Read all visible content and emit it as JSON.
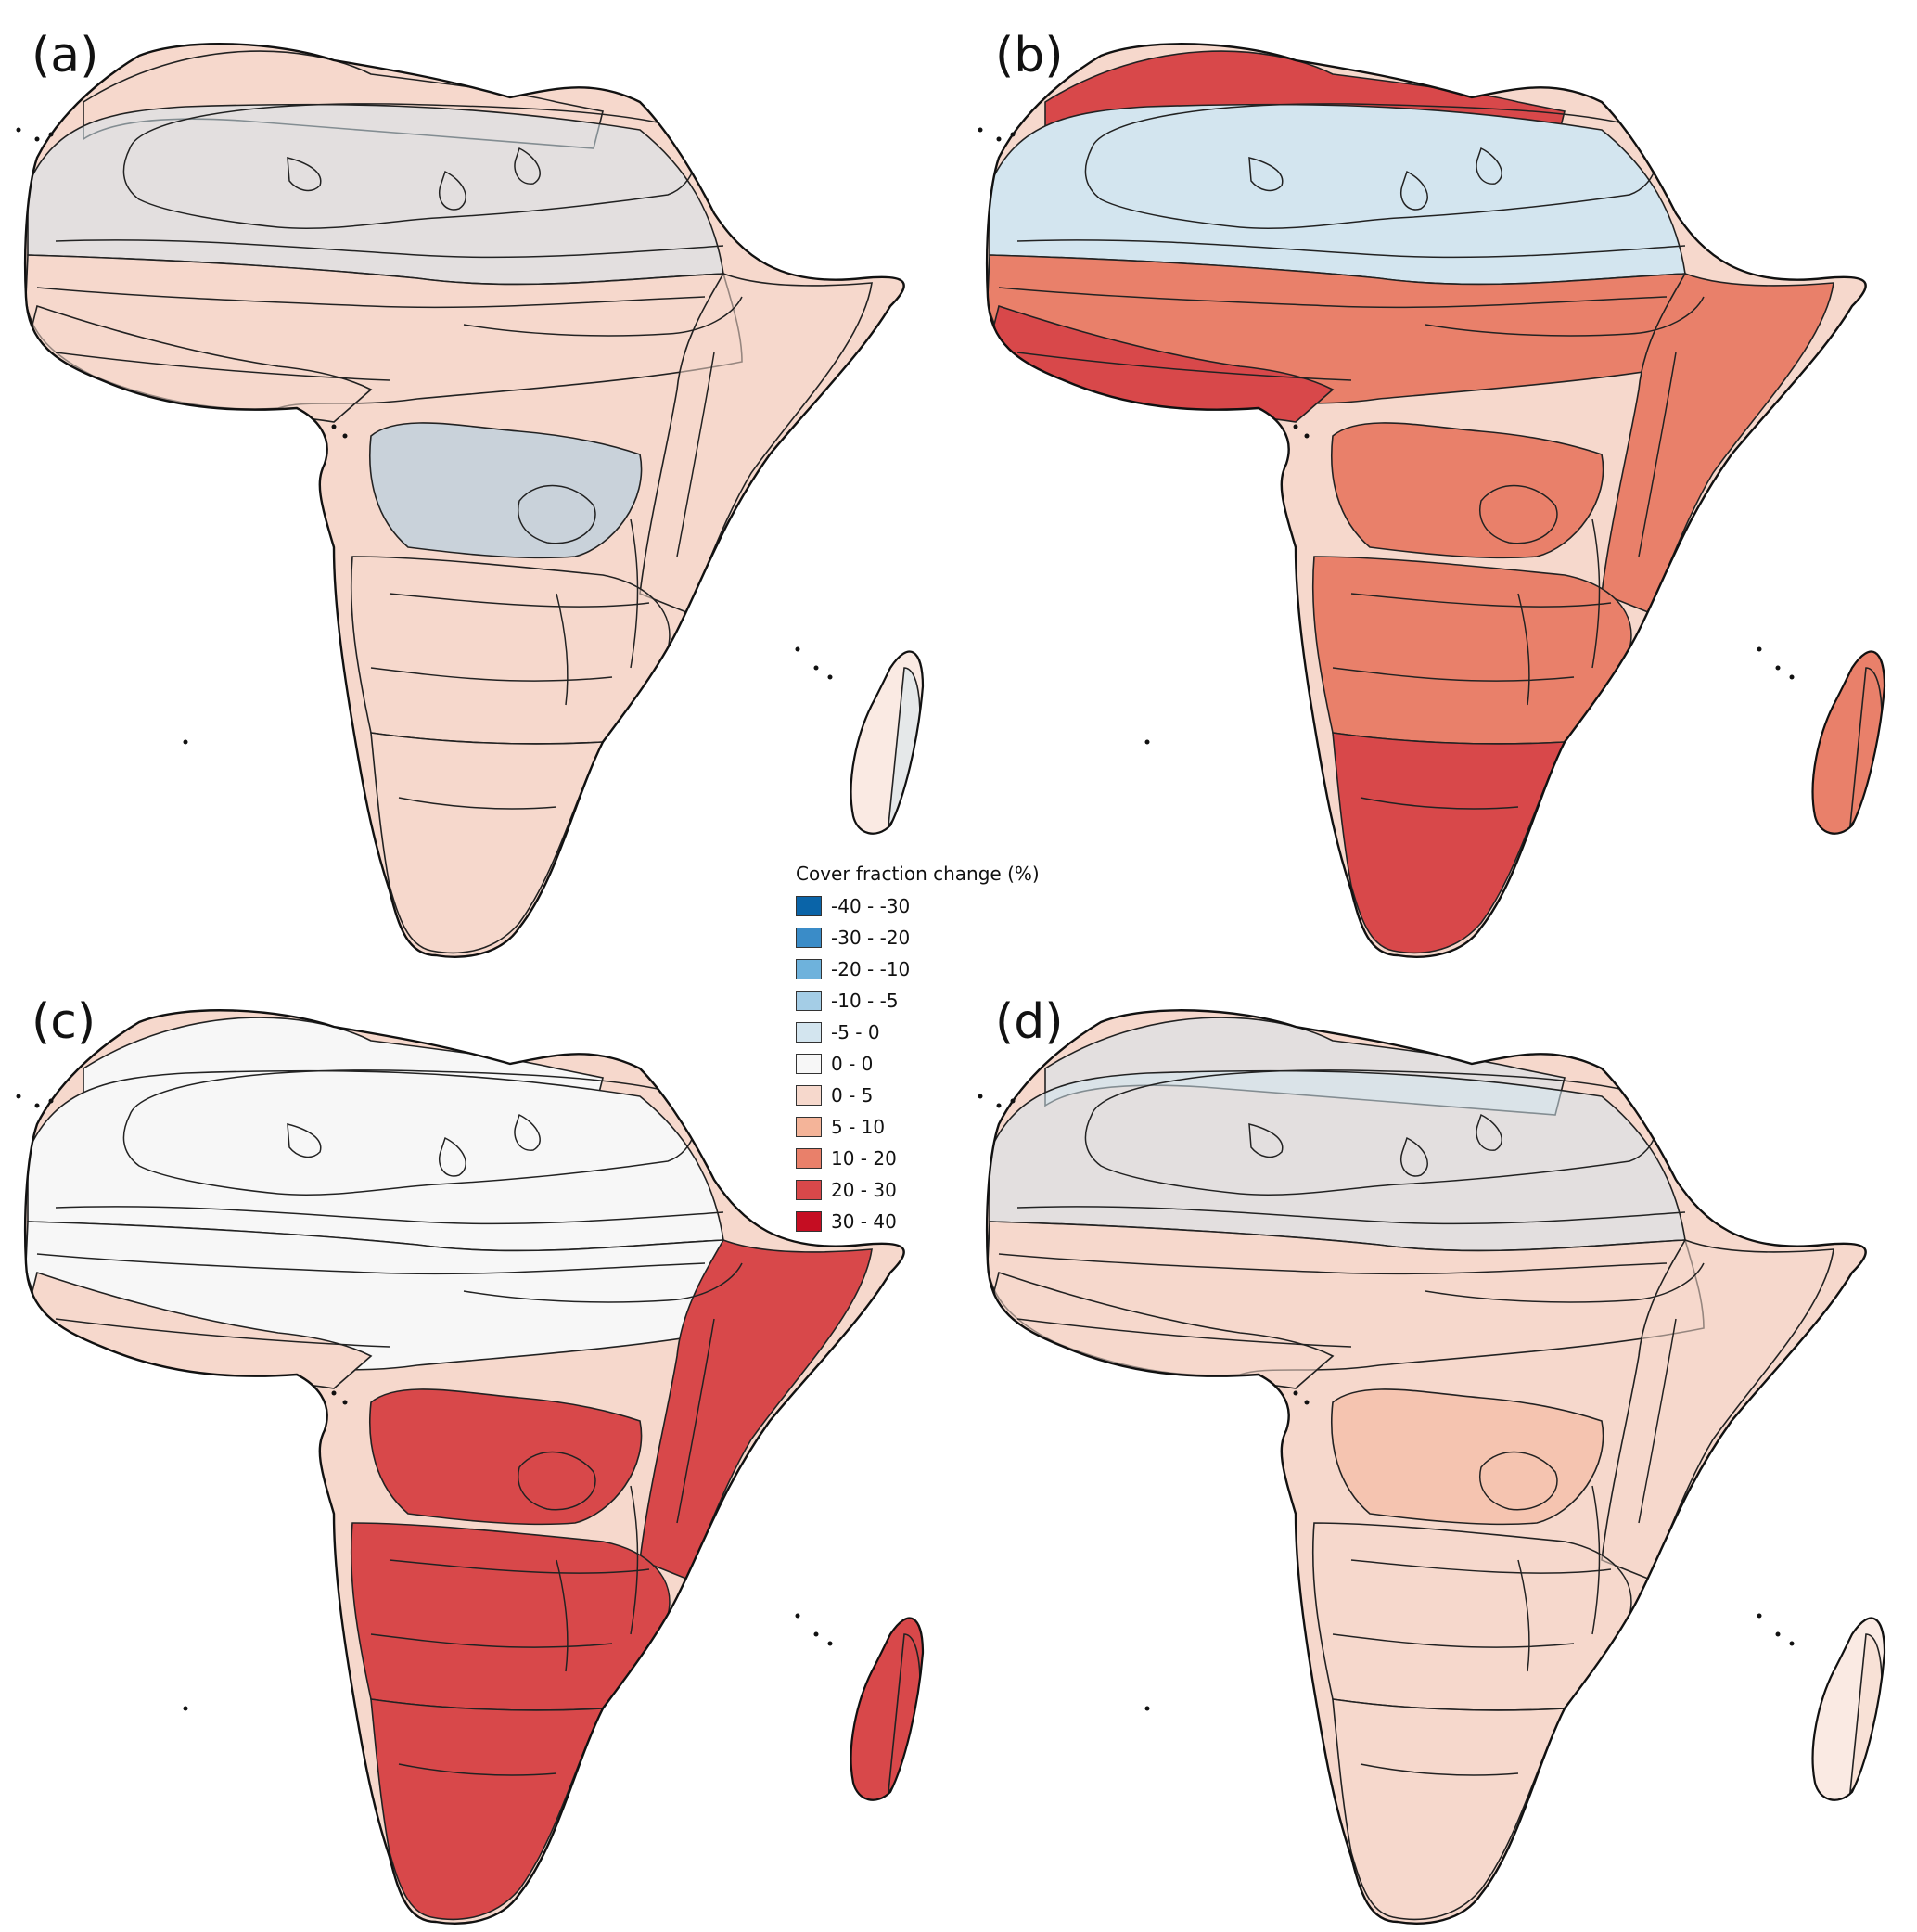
{
  "panels": [
    {
      "id": "a",
      "label": "(a)",
      "shading": "tint",
      "zones": {
        "med_coast": "0 - 5",
        "sahara": "-5 - 0",
        "sahel": "0 - 5",
        "west_coast": "0 - 5",
        "congo": "-10 - -5",
        "east": "0 - 5",
        "south": "0 - 5",
        "cape": "0 - 5",
        "madagascar": "0 - 5",
        "madagascar_east": "-5 - 0"
      }
    },
    {
      "id": "b",
      "label": "(b)",
      "shading": "solid",
      "zones": {
        "med_coast": "20 - 30",
        "sahara": "-5 - 0",
        "sahel": "10 - 20",
        "west_coast": "20 - 30",
        "congo": "10 - 20",
        "east": "10 - 20",
        "south": "10 - 20",
        "cape": "20 - 30",
        "madagascar": "10 - 20",
        "madagascar_east": "10 - 20"
      }
    },
    {
      "id": "c",
      "label": "(c)",
      "shading": "solid",
      "zones": {
        "med_coast": "0 - 0",
        "sahara": "0 - 0",
        "sahel": "0 - 0",
        "west_coast": "0 - 5",
        "congo": "20 - 30",
        "east": "20 - 30",
        "south": "20 - 30",
        "cape": "20 - 30",
        "madagascar": "20 - 30",
        "madagascar_east": "20 - 30"
      }
    },
    {
      "id": "d",
      "label": "(d)",
      "shading": "tint",
      "zones": {
        "med_coast": "-5 - 0",
        "sahara": "-5 - 0",
        "sahel": "0 - 5",
        "west_coast": "0 - 5",
        "congo": "5 - 10",
        "east": "0 - 5",
        "south": "0 - 5",
        "cape": "0 - 5",
        "madagascar": "0 - 5",
        "madagascar_east": "0 - 5"
      }
    }
  ],
  "legend": {
    "title": "Cover fraction change (%)",
    "items": [
      {
        "label": "-40 - -30",
        "color": "#0a64a8"
      },
      {
        "label": "-30 - -20",
        "color": "#3a8cc8"
      },
      {
        "label": "-20 - -10",
        "color": "#6eb2dc"
      },
      {
        "label": "-10 - -5",
        "color": "#a4cde6"
      },
      {
        "label": "-5 - 0",
        "color": "#d3e5ef"
      },
      {
        "label": "0 - 0",
        "color": "#f7f7f7"
      },
      {
        "label": "0 - 5",
        "color": "#f6d8cc"
      },
      {
        "label": "5 - 10",
        "color": "#f4b499"
      },
      {
        "label": "10 - 20",
        "color": "#e9806a"
      },
      {
        "label": "20 - 30",
        "color": "#d8484a"
      },
      {
        "label": "30 - 40",
        "color": "#c50d22"
      }
    ]
  }
}
